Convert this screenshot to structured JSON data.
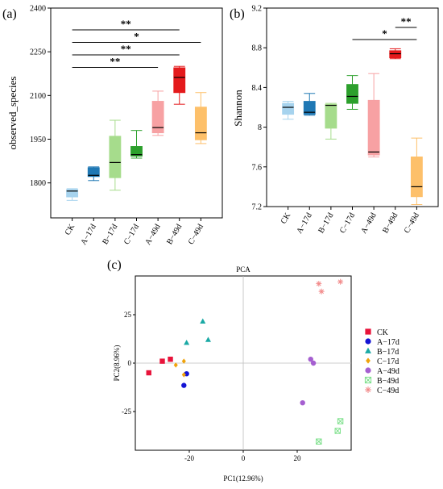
{
  "chart_data": [
    {
      "type": "box",
      "panel_label": "(a)",
      "ylabel": "observed_species",
      "ylim": [
        1680,
        2400
      ],
      "yticks": [
        1800,
        1950,
        2100,
        2250,
        2400
      ],
      "categories": [
        "CK",
        "A−17d",
        "B−17d",
        "C−17d",
        "A−49d",
        "B−49d",
        "C−49d"
      ],
      "colors": [
        "#a6d3ee",
        "#1f78b4",
        "#a6dc8c",
        "#2ca02c",
        "#f7a1a3",
        "#e41a1c",
        "#fdc06a"
      ],
      "boxes": [
        {
          "min": 1740,
          "q1": 1752,
          "median": 1772,
          "q3": 1777,
          "max": 1780
        },
        {
          "min": 1808,
          "q1": 1822,
          "median": 1826,
          "q3": 1852,
          "max": 1855
        },
        {
          "min": 1775,
          "q1": 1818,
          "median": 1870,
          "q3": 1960,
          "max": 2015
        },
        {
          "min": 1885,
          "q1": 1892,
          "median": 1897,
          "q3": 1925,
          "max": 1980
        },
        {
          "min": 1963,
          "q1": 1972,
          "median": 1990,
          "q3": 2080,
          "max": 2115
        },
        {
          "min": 2070,
          "q1": 2110,
          "median": 2162,
          "q3": 2195,
          "max": 2200
        },
        {
          "min": 1935,
          "q1": 1948,
          "median": 1972,
          "q3": 2060,
          "max": 2110
        }
      ],
      "significance": [
        {
          "from": 0,
          "to": 4,
          "label": "**"
        },
        {
          "from": 0,
          "to": 5,
          "label": "**"
        },
        {
          "from": 0,
          "to": 6,
          "label": "*"
        },
        {
          "from": 0,
          "to": 5,
          "label": "**"
        }
      ]
    },
    {
      "type": "box",
      "panel_label": "(b)",
      "ylabel": "Shannon",
      "ylim": [
        7.2,
        9.2
      ],
      "yticks": [
        7.2,
        7.6,
        8.0,
        8.4,
        8.8,
        9.2
      ],
      "categories": [
        "CK",
        "A−17d",
        "B−17d",
        "C−17d",
        "A−49d",
        "B−49d",
        "C−49d"
      ],
      "colors": [
        "#a6d3ee",
        "#1f78b4",
        "#a6dc8c",
        "#2ca02c",
        "#f7a1a3",
        "#e41a1c",
        "#fdc06a"
      ],
      "boxes": [
        {
          "min": 8.08,
          "q1": 8.13,
          "median": 8.2,
          "q3": 8.24,
          "max": 8.26
        },
        {
          "min": 8.12,
          "q1": 8.13,
          "median": 8.15,
          "q3": 8.26,
          "max": 8.34
        },
        {
          "min": 7.88,
          "q1": 7.99,
          "median": 8.22,
          "q3": 8.23,
          "max": 8.24
        },
        {
          "min": 8.18,
          "q1": 8.24,
          "median": 8.31,
          "q3": 8.43,
          "max": 8.52
        },
        {
          "min": 7.7,
          "q1": 7.72,
          "median": 7.75,
          "q3": 8.27,
          "max": 8.54
        },
        {
          "min": 8.69,
          "q1": 8.7,
          "median": 8.74,
          "q3": 8.77,
          "max": 8.79
        },
        {
          "min": 7.22,
          "q1": 7.3,
          "median": 7.4,
          "q3": 7.7,
          "max": 7.89
        }
      ],
      "significance": [
        {
          "from": 3,
          "to": 6,
          "label": "*"
        },
        {
          "from": 5,
          "to": 6,
          "label": "**"
        }
      ]
    },
    {
      "type": "scatter",
      "panel_label": "(c)",
      "title": "PCA",
      "xlabel": "PC1(12.96%)",
      "ylabel": "PC2(8.96%)",
      "xlim": [
        -40,
        40
      ],
      "ylim": [
        -45,
        45
      ],
      "xticks": [
        -20,
        0,
        20
      ],
      "yticks": [
        -25,
        0,
        25
      ],
      "zero_lines": true,
      "legend": "right",
      "series": [
        {
          "name": "CK",
          "marker": "square",
          "color": "#e8133a",
          "points": [
            [
              -35,
              -5
            ],
            [
              -30,
              1
            ],
            [
              -27,
              2
            ]
          ]
        },
        {
          "name": "A−17d",
          "marker": "circle",
          "color": "#1414d4",
          "points": [
            [
              -21,
              -5.5
            ],
            [
              -22,
              -11.5
            ]
          ]
        },
        {
          "name": "B−17d",
          "marker": "triangle",
          "color": "#1aa9a5",
          "points": [
            [
              -15,
              21.5
            ],
            [
              -21,
              10.5
            ],
            [
              -13,
              12
            ]
          ]
        },
        {
          "name": "C−17d",
          "marker": "diamond",
          "color": "#f0a30a",
          "points": [
            [
              -22,
              1
            ],
            [
              -25,
              -1
            ],
            [
              -22,
              -6
            ]
          ]
        },
        {
          "name": "A−49d",
          "marker": "circle",
          "color": "#a55fd0",
          "points": [
            [
              25,
              2
            ],
            [
              26,
              0
            ],
            [
              22,
              -20.5
            ]
          ]
        },
        {
          "name": "B−49d",
          "marker": "boxx",
          "color": "#7de08b",
          "points": [
            [
              36,
              -30
            ],
            [
              35,
              -35
            ],
            [
              28,
              -40.5
            ]
          ]
        },
        {
          "name": "C−49d",
          "marker": "asterisk",
          "color": "#f28a8a",
          "points": [
            [
              28,
              41
            ],
            [
              29,
              37
            ],
            [
              36,
              42
            ]
          ]
        }
      ]
    }
  ]
}
